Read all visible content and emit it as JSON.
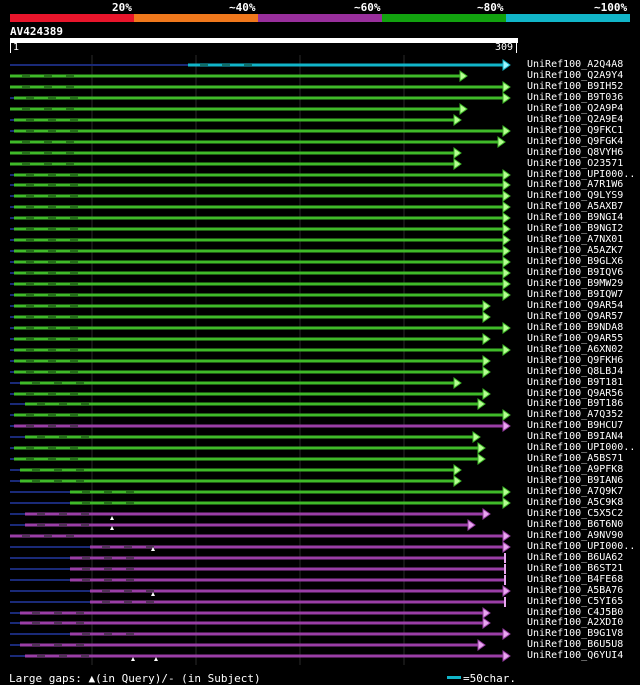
{
  "legend": {
    "labels": [
      "20%",
      "~40%",
      "~60%",
      "~80%",
      "~100%"
    ],
    "colors": [
      "#e8152b",
      "#f0781c",
      "#992f9c",
      "#12a20f",
      "#11b5c9"
    ]
  },
  "query": {
    "name": "AV424389",
    "start": "1",
    "end": "309"
  },
  "colors": {
    "green": "#3fba29",
    "purple": "#9a3ea6",
    "cyan": "#11b5c9",
    "navy": "#1a2a78",
    "green_head": "#b6ff92",
    "purple_head": "#e9a6f0",
    "cyan_head": "#9ef6ff"
  },
  "hits": [
    {
      "name": "UniRef100_A2Q4A8",
      "color": "cyan",
      "start": 188,
      "end": 510,
      "head": "arrow"
    },
    {
      "name": "UniRef100_Q2A9Y4",
      "color": "green",
      "start": 10,
      "end": 467,
      "head": "arrow"
    },
    {
      "name": "UniRef100_B9IH52",
      "color": "green",
      "start": 10,
      "end": 510,
      "head": "arrow"
    },
    {
      "name": "UniRef100_B9T036",
      "color": "green",
      "start": 14,
      "end": 510,
      "head": "arrow"
    },
    {
      "name": "UniRef100_Q2A9P4",
      "color": "green",
      "start": 10,
      "end": 467,
      "head": "arrow"
    },
    {
      "name": "UniRef100_Q2A9E4",
      "color": "green",
      "start": 14,
      "end": 461,
      "head": "arrow"
    },
    {
      "name": "UniRef100_Q9FKC1",
      "color": "green",
      "start": 14,
      "end": 510,
      "head": "arrow"
    },
    {
      "name": "UniRef100_Q9FGK4",
      "color": "green",
      "start": 10,
      "end": 505,
      "head": "arrow"
    },
    {
      "name": "UniRef100_Q8VYH6",
      "color": "green",
      "start": 10,
      "end": 461,
      "head": "arrow"
    },
    {
      "name": "UniRef100_O23571",
      "color": "green",
      "start": 10,
      "end": 461,
      "head": "arrow"
    },
    {
      "name": "UniRef100_UPI000..",
      "color": "green",
      "start": 14,
      "end": 510,
      "head": "arrow"
    },
    {
      "name": "UniRef100_A7R1W6",
      "color": "green",
      "start": 14,
      "end": 510,
      "head": "arrow"
    },
    {
      "name": "UniRef100_Q9LYS9",
      "color": "green",
      "start": 14,
      "end": 510,
      "head": "arrow"
    },
    {
      "name": "UniRef100_A5AXB7",
      "color": "green",
      "start": 14,
      "end": 510,
      "head": "arrow"
    },
    {
      "name": "UniRef100_B9NGI4",
      "color": "green",
      "start": 14,
      "end": 510,
      "head": "arrow"
    },
    {
      "name": "UniRef100_B9NGI2",
      "color": "green",
      "start": 14,
      "end": 510,
      "head": "arrow"
    },
    {
      "name": "UniRef100_A7NX01",
      "color": "green",
      "start": 14,
      "end": 510,
      "head": "arrow"
    },
    {
      "name": "UniRef100_A5AZK7",
      "color": "green",
      "start": 14,
      "end": 510,
      "head": "arrow"
    },
    {
      "name": "UniRef100_B9GLX6",
      "color": "green",
      "start": 14,
      "end": 510,
      "head": "arrow"
    },
    {
      "name": "UniRef100_B9IQV6",
      "color": "green",
      "start": 14,
      "end": 510,
      "head": "arrow"
    },
    {
      "name": "UniRef100_B9MW29",
      "color": "green",
      "start": 14,
      "end": 510,
      "head": "arrow"
    },
    {
      "name": "UniRef100_B9IQW7",
      "color": "green",
      "start": 14,
      "end": 510,
      "head": "arrow"
    },
    {
      "name": "UniRef100_Q9AR54",
      "color": "green",
      "start": 14,
      "end": 490,
      "head": "arrow"
    },
    {
      "name": "UniRef100_Q9AR57",
      "color": "green",
      "start": 14,
      "end": 490,
      "head": "arrow"
    },
    {
      "name": "UniRef100_B9NDA8",
      "color": "green",
      "start": 14,
      "end": 510,
      "head": "arrow"
    },
    {
      "name": "UniRef100_Q9AR55",
      "color": "green",
      "start": 14,
      "end": 490,
      "head": "arrow"
    },
    {
      "name": "UniRef100_A6XN02",
      "color": "green",
      "start": 14,
      "end": 510,
      "head": "arrow"
    },
    {
      "name": "UniRef100_Q9FKH6",
      "color": "green",
      "start": 14,
      "end": 490,
      "head": "arrow"
    },
    {
      "name": "UniRef100_Q8LBJ4",
      "color": "green",
      "start": 14,
      "end": 490,
      "head": "arrow"
    },
    {
      "name": "UniRef100_B9T181",
      "color": "green",
      "start": 20,
      "end": 461,
      "head": "arrow"
    },
    {
      "name": "UniRef100_Q9AR56",
      "color": "green",
      "start": 14,
      "end": 490,
      "head": "arrow"
    },
    {
      "name": "UniRef100_B9T186",
      "color": "green",
      "start": 25,
      "end": 485,
      "head": "arrow"
    },
    {
      "name": "UniRef100_A7Q352",
      "color": "green",
      "start": 14,
      "end": 510,
      "head": "arrow"
    },
    {
      "name": "UniRef100_B9HCU7",
      "color": "purple",
      "start": 14,
      "end": 510,
      "head": "arrow"
    },
    {
      "name": "UniRef100_B9IAN4",
      "color": "green",
      "start": 25,
      "end": 480,
      "head": "arrow"
    },
    {
      "name": "UniRef100_UPI000..",
      "color": "green",
      "start": 14,
      "end": 485,
      "head": "arrow"
    },
    {
      "name": "UniRef100_A5BS71",
      "color": "green",
      "start": 14,
      "end": 485,
      "head": "arrow"
    },
    {
      "name": "UniRef100_A9PFK8",
      "color": "green",
      "start": 20,
      "end": 461,
      "head": "arrow"
    },
    {
      "name": "UniRef100_B9IAN6",
      "color": "green",
      "start": 20,
      "end": 461,
      "head": "arrow"
    },
    {
      "name": "UniRef100_A7Q9K7",
      "color": "green",
      "start": 70,
      "end": 510,
      "head": "arrow"
    },
    {
      "name": "UniRef100_A5C9K8",
      "color": "green",
      "start": 70,
      "end": 510,
      "head": "arrow"
    },
    {
      "name": "UniRef100_C5X5C2",
      "color": "purple",
      "start": 25,
      "end": 490,
      "head": "arrow"
    },
    {
      "name": "UniRef100_B6T6N0",
      "color": "purple",
      "start": 25,
      "end": 475,
      "head": "arrow"
    },
    {
      "name": "UniRef100_A9NV90",
      "color": "purple",
      "start": 10,
      "end": 510,
      "head": "arrow"
    },
    {
      "name": "UniRef100_UPI000..",
      "color": "purple",
      "start": 90,
      "end": 510,
      "head": "arrow"
    },
    {
      "name": "UniRef100_B6UA62",
      "color": "purple",
      "start": 70,
      "end": 505,
      "head": "bar"
    },
    {
      "name": "UniRef100_B6ST21",
      "color": "purple",
      "start": 70,
      "end": 505,
      "head": "bar"
    },
    {
      "name": "UniRef100_B4FE68",
      "color": "purple",
      "start": 70,
      "end": 505,
      "head": "bar"
    },
    {
      "name": "UniRef100_A5BA76",
      "color": "purple",
      "start": 90,
      "end": 510,
      "head": "arrow"
    },
    {
      "name": "UniRef100_C5YI65",
      "color": "purple",
      "start": 90,
      "end": 505,
      "head": "bar"
    },
    {
      "name": "UniRef100_C4J5B0",
      "color": "purple",
      "start": 20,
      "end": 490,
      "head": "arrow"
    },
    {
      "name": "UniRef100_A2XDI0",
      "color": "purple",
      "start": 20,
      "end": 490,
      "head": "arrow"
    },
    {
      "name": "UniRef100_B9G1V8",
      "color": "purple",
      "start": 70,
      "end": 510,
      "head": "arrow"
    },
    {
      "name": "UniRef100_B6U5U8",
      "color": "purple",
      "start": 20,
      "end": 485,
      "head": "arrow"
    },
    {
      "name": "UniRef100_Q6YUI4",
      "color": "purple",
      "start": 25,
      "end": 510,
      "head": "arrow"
    }
  ],
  "footer": {
    "gaps_text": "Large gaps: ▲(in Query)/- (in Subject)",
    "scale_text": "=50char."
  }
}
